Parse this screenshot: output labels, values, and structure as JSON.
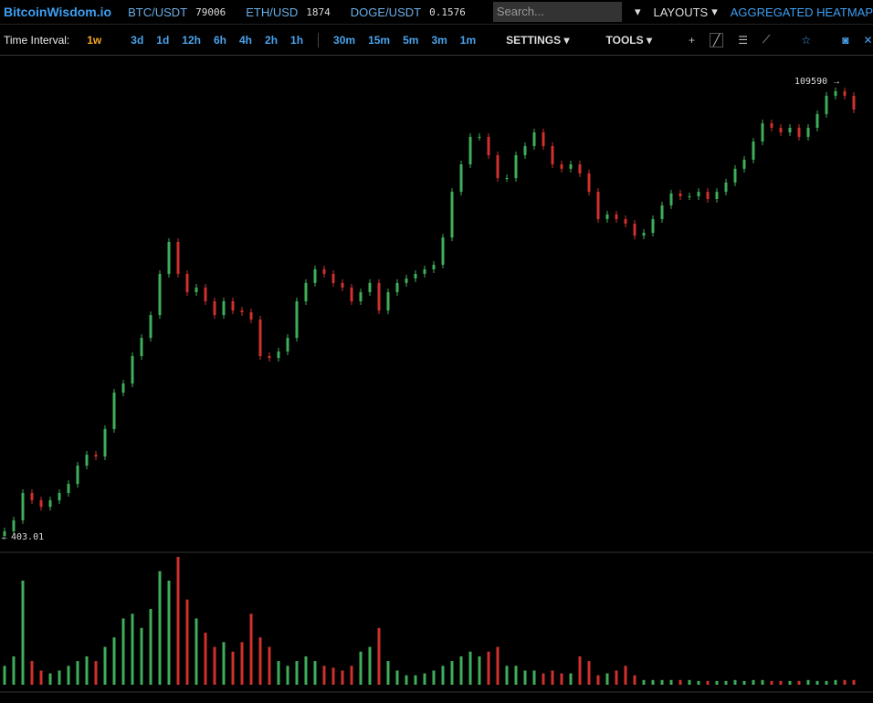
{
  "header": {
    "logo": "BitcoinWisdom.io",
    "tickers": [
      {
        "pair": "BTC/USDT",
        "price": 79006
      },
      {
        "pair": "ETH/USD",
        "price": 1874
      },
      {
        "pair": "DOGE/USDT",
        "price": 0.1576
      }
    ],
    "search_placeholder": "Search...",
    "menus": [
      "LAYOUTS",
      "AGGREGATED HEATMAP"
    ]
  },
  "toolbar": {
    "label": "Time Interval:",
    "active": "1w",
    "intervals": [
      "3d",
      "1d",
      "12h",
      "6h",
      "4h",
      "2h",
      "1h",
      "30m",
      "15m",
      "5m",
      "3m",
      "1m"
    ],
    "menus": [
      "SETTINGS",
      "TOOLS"
    ]
  },
  "chart": {
    "log_scale": true,
    "high": 109590,
    "low": 403.01,
    "up_color": "#3fae5a",
    "down_color": "#d0312d",
    "closes": [
      427,
      489,
      686,
      627,
      578,
      627,
      686,
      768,
      964,
      1104,
      1079,
      1517,
      2385,
      2668,
      3750,
      4700,
      6240,
      10400,
      15450,
      10400,
      8280,
      8770,
      7400,
      6240,
      7400,
      6600,
      6460,
      5900,
      3750,
      3660,
      3970,
      4700,
      7400,
      9290,
      11000,
      10400,
      9290,
      8770,
      7400,
      8280,
      9290,
      6600,
      8280,
      9290,
      9820,
      10400,
      11000,
      11640,
      16330,
      28770,
      40450,
      56870,
      56870,
      45290,
      34120,
      34120,
      45290,
      50720,
      60120,
      50720,
      40450,
      38280,
      40450,
      36140,
      28770,
      20510,
      21730,
      20510,
      19370,
      16710,
      17300,
      20510,
      24330,
      28180,
      27230,
      27230,
      28770,
      26310,
      28770,
      32280,
      38280,
      42850,
      53700,
      67300,
      63680,
      60120,
      63680,
      56870,
      63680,
      75500,
      94700,
      100200,
      94700,
      79800
    ],
    "volumes": [
      20,
      30,
      110,
      25,
      15,
      12,
      15,
      20,
      25,
      30,
      25,
      40,
      50,
      70,
      75,
      60,
      80,
      120,
      110,
      135,
      90,
      70,
      55,
      40,
      45,
      35,
      45,
      75,
      50,
      40,
      25,
      20,
      25,
      30,
      25,
      20,
      18,
      15,
      20,
      35,
      40,
      60,
      25,
      15,
      10,
      10,
      12,
      15,
      20,
      25,
      30,
      35,
      30,
      35,
      40,
      20,
      20,
      15,
      15,
      12,
      15,
      12,
      12,
      30,
      25,
      10,
      12,
      15,
      20,
      10,
      5,
      5,
      5,
      5,
      5,
      5,
      4,
      4,
      4,
      4,
      5,
      4,
      5,
      5,
      4,
      4,
      4,
      4,
      5,
      4,
      4,
      5,
      5,
      5
    ]
  }
}
